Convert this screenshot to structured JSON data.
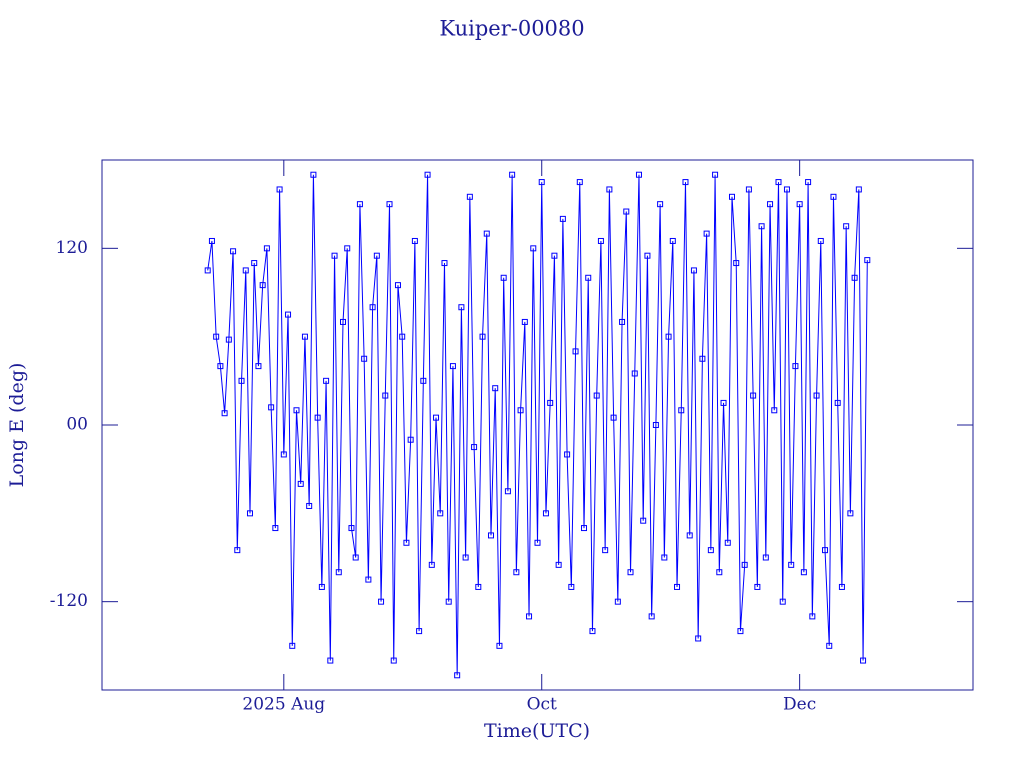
{
  "chart_data": {
    "type": "line",
    "title": "Kuiper-00080",
    "xlabel": "Time(UTC)",
    "ylabel": "Long E (deg)",
    "color": "#0000ff",
    "markers": true,
    "xlim": [
      170,
      376
    ],
    "xticks": [
      {
        "value": 213,
        "label": "2025 Aug"
      },
      {
        "value": 274,
        "label": "Oct"
      },
      {
        "value": 335,
        "label": "Dec"
      }
    ],
    "ylim": [
      -180,
      180
    ],
    "yticks": [
      -120,
      {
        "value": 0,
        "label": "00"
      },
      120
    ],
    "x": [
      195,
      196,
      197,
      198,
      199,
      200,
      201,
      202,
      203,
      204,
      205,
      206,
      207,
      208,
      209,
      210,
      211,
      212,
      213,
      214,
      215,
      216,
      217,
      218,
      219,
      220,
      221,
      222,
      223,
      224,
      225,
      226,
      227,
      228,
      229,
      230,
      231,
      232,
      233,
      234,
      235,
      236,
      237,
      238,
      239,
      240,
      241,
      242,
      243,
      244,
      245,
      246,
      247,
      248,
      249,
      250,
      251,
      252,
      253,
      254,
      255,
      256,
      257,
      258,
      259,
      260,
      261,
      262,
      263,
      264,
      265,
      266,
      267,
      268,
      269,
      270,
      271,
      272,
      273,
      274,
      275,
      276,
      277,
      278,
      279,
      280,
      281,
      282,
      283,
      284,
      285,
      286,
      287,
      288,
      289,
      290,
      291,
      292,
      293,
      294,
      295,
      296,
      297,
      298,
      299,
      300,
      301,
      302,
      303,
      304,
      305,
      306,
      307,
      308,
      309,
      310,
      311,
      312,
      313,
      314,
      315,
      316,
      317,
      318,
      319,
      320,
      321,
      322,
      323,
      324,
      325,
      326,
      327,
      328,
      329,
      330,
      331,
      332,
      333,
      334,
      335,
      336,
      337,
      338,
      339,
      340,
      341,
      342,
      343,
      344,
      345,
      346,
      347,
      348,
      349,
      350,
      351
    ],
    "values": [
      105,
      125,
      60,
      40,
      8,
      58,
      118,
      -85,
      30,
      105,
      -60,
      110,
      40,
      95,
      120,
      12,
      -70,
      160,
      -20,
      75,
      -150,
      10,
      -40,
      60,
      -55,
      170,
      5,
      -110,
      30,
      -160,
      115,
      -100,
      70,
      120,
      -70,
      -90,
      150,
      45,
      -105,
      80,
      115,
      -120,
      20,
      150,
      -160,
      95,
      60,
      -80,
      -10,
      125,
      -140,
      30,
      170,
      -95,
      5,
      -60,
      110,
      -120,
      40,
      -170,
      80,
      -90,
      155,
      -15,
      -110,
      60,
      130,
      -75,
      25,
      -150,
      100,
      -45,
      170,
      -100,
      10,
      70,
      -130,
      120,
      -80,
      165,
      -60,
      15,
      115,
      -95,
      140,
      -20,
      -110,
      50,
      165,
      -70,
      100,
      -140,
      20,
      125,
      -85,
      160,
      5,
      -120,
      70,
      145,
      -100,
      35,
      170,
      -65,
      115,
      -130,
      0,
      150,
      -90,
      60,
      125,
      -110,
      10,
      165,
      -75,
      105,
      -145,
      45,
      130,
      -85,
      170,
      -100,
      15,
      -80,
      155,
      110,
      -140,
      -95,
      160,
      20,
      -110,
      135,
      -90,
      150,
      10,
      165,
      -120,
      160,
      -95,
      40,
      150,
      -100,
      165,
      -130,
      20,
      125,
      -85,
      -150,
      155,
      15,
      -110,
      135,
      -60,
      100,
      160,
      -160,
      112
    ]
  }
}
